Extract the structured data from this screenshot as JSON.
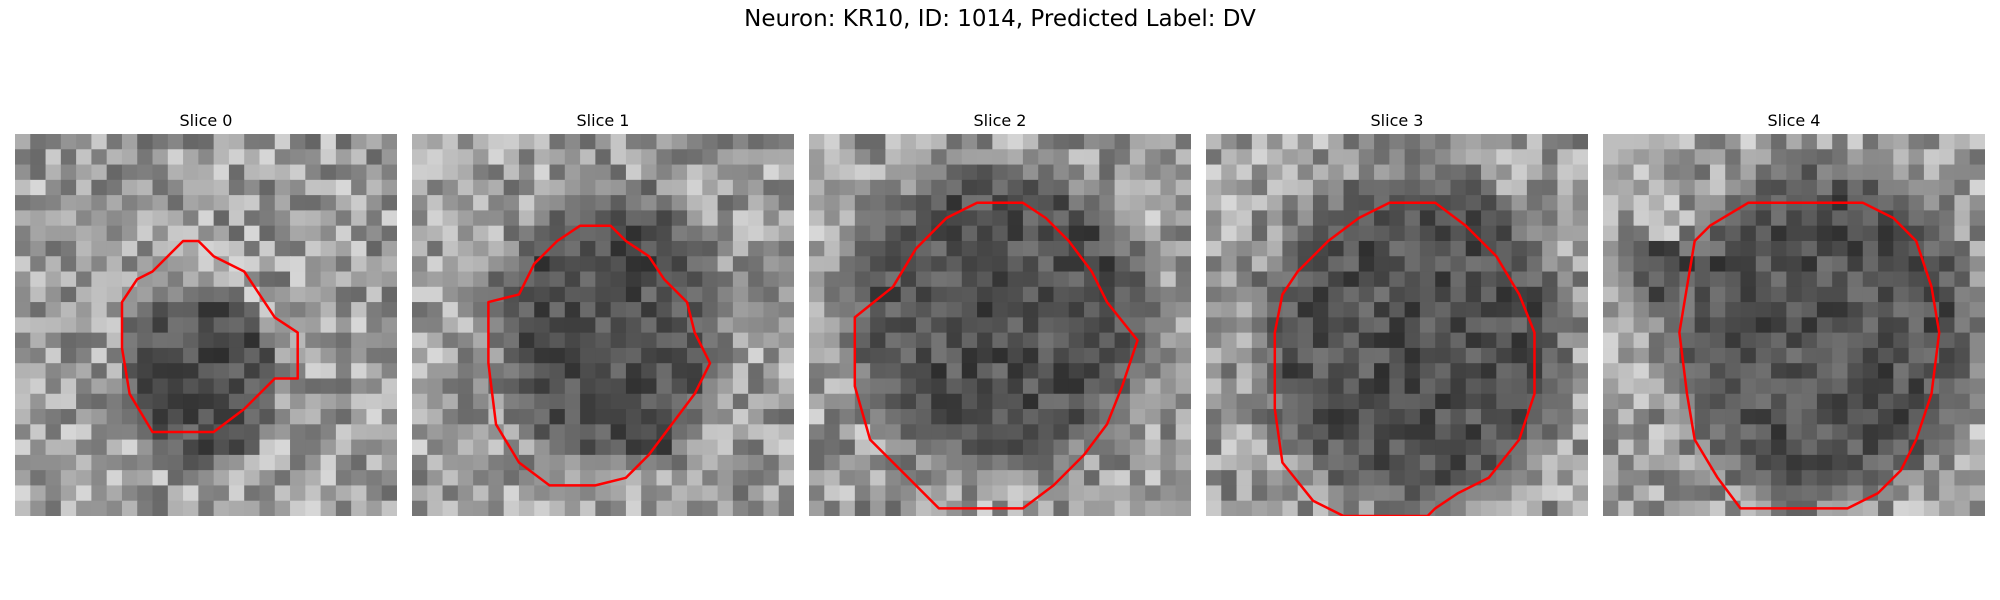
{
  "figure": {
    "title": "Neuron: KR10, ID: 1014, Predicted Label: DV",
    "contour_color": "#ff0000",
    "colormap": "gray",
    "panels": [
      {
        "title": "Slice 0"
      },
      {
        "title": "Slice 1"
      },
      {
        "title": "Slice 2"
      },
      {
        "title": "Slice 3"
      },
      {
        "title": "Slice 4"
      }
    ]
  }
}
